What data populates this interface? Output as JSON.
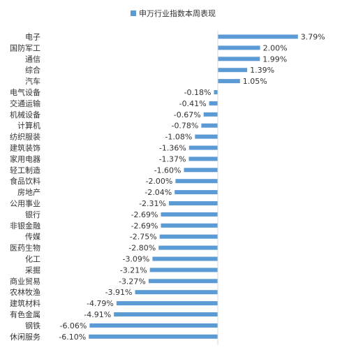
{
  "chart_data": {
    "type": "bar",
    "orientation": "horizontal",
    "legend": "top-center",
    "grid": false,
    "series": [
      {
        "name": "申万行业指数本周表现",
        "color": "#5B9BD5",
        "value_labels": [
          "3.79%",
          "2.00%",
          "1.99%",
          "1.39%",
          "1.05%",
          "-0.18%",
          "-0.41%",
          "-0.67%",
          "-0.78%",
          "-1.08%",
          "-1.36%",
          "-1.37%",
          "-1.60%",
          "-2.00%",
          "-2.04%",
          "-2.31%",
          "-2.69%",
          "-2.69%",
          "-2.75%",
          "-2.80%",
          "-3.09%",
          "-3.21%",
          "-3.27%",
          "-3.91%",
          "-4.79%",
          "-4.91%",
          "-6.06%",
          "-6.10%"
        ],
        "values": [
          3.79,
          2.0,
          1.99,
          1.39,
          1.05,
          -0.18,
          -0.41,
          -0.67,
          -0.78,
          -1.08,
          -1.36,
          -1.37,
          -1.6,
          -2.0,
          -2.04,
          -2.31,
          -2.69,
          -2.69,
          -2.75,
          -2.8,
          -3.09,
          -3.21,
          -3.27,
          -3.91,
          -4.79,
          -4.91,
          -6.06,
          -6.1
        ]
      }
    ],
    "categories": [
      "电子",
      "国防军工",
      "通信",
      "综合",
      "汽车",
      "电气设备",
      "交通运输",
      "机械设备",
      "计算机",
      "纺织服装",
      "建筑装饰",
      "家用电器",
      "轻工制造",
      "食品饮料",
      "房地产",
      "公用事业",
      "银行",
      "非银金融",
      "传媒",
      "医药生物",
      "化工",
      "采掘",
      "商业贸易",
      "农林牧渔",
      "建筑材料",
      "有色金属",
      "钢铁",
      "休闲服务"
    ],
    "xlim": [
      -6.5,
      4.5
    ]
  }
}
